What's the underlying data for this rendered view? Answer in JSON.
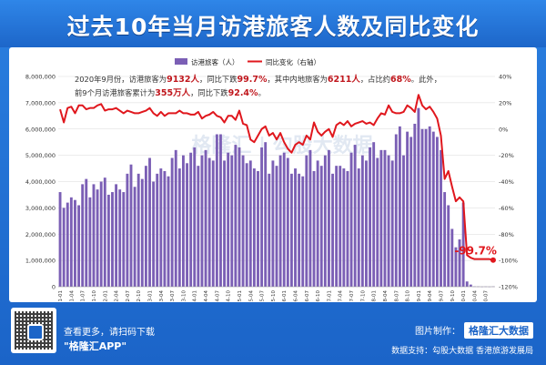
{
  "title": "过去10年当月访港旅客人数及同比变化",
  "colors": {
    "bar": "#7b5fb5",
    "line": "#e0171d",
    "highlight": "#c0171d",
    "background": "#1f6fd0"
  },
  "annotation": {
    "line1": [
      {
        "t": "2020年9月份，访港旅客为",
        "hl": false
      },
      {
        "t": "9132人",
        "hl": true
      },
      {
        "t": "，同比下跌",
        "hl": false
      },
      {
        "t": "99.7%",
        "hl": true
      },
      {
        "t": "，其中内地旅客为",
        "hl": false
      },
      {
        "t": "6211人",
        "hl": true
      },
      {
        "t": "，占比约",
        "hl": false
      },
      {
        "t": "68%",
        "hl": true
      },
      {
        "t": "。此外，",
        "hl": false
      }
    ],
    "line2": [
      {
        "t": "前9个月访港旅客累计为",
        "hl": false
      },
      {
        "t": "355万人",
        "hl": true
      },
      {
        "t": "，同比下跌",
        "hl": false
      },
      {
        "t": "92.4%",
        "hl": true
      },
      {
        "t": "。",
        "hl": false
      }
    ]
  },
  "end_label": "-99.7%",
  "watermark": "格隆汇 | 勾股大数据",
  "footer": {
    "scan_line1": "查看更多，请扫码下载",
    "scan_line2": "\"格隆汇APP\"",
    "made_by": "图片制作：",
    "brand": "格隆汇大数据",
    "source": "数据支持：勾股大数据  香港旅游发展局"
  },
  "chart_data": {
    "type": "bar+line",
    "title": "过去10年当月访港旅客人数及同比变化",
    "legend": [
      "访港旅客（人）",
      "同比变化（右轴）"
    ],
    "legend_position": "top-left",
    "y_left": {
      "min": 0,
      "max": 8000000,
      "step": 1000000,
      "labels": [
        "0",
        "1,000,000",
        "2,000,000",
        "3,000,000",
        "4,000,000",
        "5,000,000",
        "6,000,000",
        "7,000,000",
        "8,000,000"
      ]
    },
    "y_right": {
      "min": -120,
      "max": 40,
      "step": 20,
      "labels": [
        "-120%",
        "-100%",
        "-80%",
        "-60%",
        "-40%",
        "-20%",
        "0%",
        "20%",
        "40%"
      ]
    },
    "x_tick_labels": [
      "2011-01",
      "2011-04",
      "2011-07",
      "2011-10",
      "2012-01",
      "2012-04",
      "2012-07",
      "2012-10",
      "2013-01",
      "2013-04",
      "2013-07",
      "2013-10",
      "2014-01",
      "2014-04",
      "2014-07",
      "2014-10",
      "2015-01",
      "2015-04",
      "2015-07",
      "2015-10",
      "2016-01",
      "2016-04",
      "2016-07",
      "2016-10",
      "2017-01",
      "2017-04",
      "2017-07",
      "2017-10",
      "2018-01",
      "2018-04",
      "2018-07",
      "2018-10",
      "2019-01",
      "2019-04",
      "2019-07",
      "2019-10",
      "2020-01",
      "2020-04",
      "2020-07"
    ],
    "months": [
      "2011-01",
      "2011-02",
      "2011-03",
      "2011-04",
      "2011-05",
      "2011-06",
      "2011-07",
      "2011-08",
      "2011-09",
      "2011-10",
      "2011-11",
      "2011-12",
      "2012-01",
      "2012-02",
      "2012-03",
      "2012-04",
      "2012-05",
      "2012-06",
      "2012-07",
      "2012-08",
      "2012-09",
      "2012-10",
      "2012-11",
      "2012-12",
      "2013-01",
      "2013-02",
      "2013-03",
      "2013-04",
      "2013-05",
      "2013-06",
      "2013-07",
      "2013-08",
      "2013-09",
      "2013-10",
      "2013-11",
      "2013-12",
      "2014-01",
      "2014-02",
      "2014-03",
      "2014-04",
      "2014-05",
      "2014-06",
      "2014-07",
      "2014-08",
      "2014-09",
      "2014-10",
      "2014-11",
      "2014-12",
      "2015-01",
      "2015-02",
      "2015-03",
      "2015-04",
      "2015-05",
      "2015-06",
      "2015-07",
      "2015-08",
      "2015-09",
      "2015-10",
      "2015-11",
      "2015-12",
      "2016-01",
      "2016-02",
      "2016-03",
      "2016-04",
      "2016-05",
      "2016-06",
      "2016-07",
      "2016-08",
      "2016-09",
      "2016-10",
      "2016-11",
      "2016-12",
      "2017-01",
      "2017-02",
      "2017-03",
      "2017-04",
      "2017-05",
      "2017-06",
      "2017-07",
      "2017-08",
      "2017-09",
      "2017-10",
      "2017-11",
      "2017-12",
      "2018-01",
      "2018-02",
      "2018-03",
      "2018-04",
      "2018-05",
      "2018-06",
      "2018-07",
      "2018-08",
      "2018-09",
      "2018-10",
      "2018-11",
      "2018-12",
      "2019-01",
      "2019-02",
      "2019-03",
      "2019-04",
      "2019-05",
      "2019-06",
      "2019-07",
      "2019-08",
      "2019-09",
      "2019-10",
      "2019-11",
      "2019-12",
      "2020-01",
      "2020-02",
      "2020-03",
      "2020-04",
      "2020-05",
      "2020-06",
      "2020-07",
      "2020-08",
      "2020-09"
    ],
    "visitors": [
      3600000,
      3000000,
      3200000,
      3400000,
      3300000,
      3100000,
      3900000,
      4100000,
      3400000,
      3900000,
      3700000,
      4000000,
      4150000,
      3500000,
      3600000,
      3900000,
      3700000,
      3600000,
      4300000,
      4650000,
      3800000,
      4300000,
      4100000,
      4600000,
      4900000,
      4000000,
      4300000,
      4500000,
      4400000,
      4200000,
      4900000,
      5200000,
      4500000,
      5000000,
      4700000,
      5100000,
      5300000,
      4600000,
      5000000,
      5200000,
      4900000,
      4800000,
      5800000,
      5800000,
      4800000,
      5100000,
      5000000,
      5400000,
      5300000,
      5000000,
      4700000,
      4800000,
      4500000,
      4400000,
      5300000,
      5500000,
      4300000,
      4800000,
      4600000,
      5000000,
      5100000,
      4900000,
      4300000,
      4500000,
      4300000,
      4200000,
      5000000,
      5200000,
      4400000,
      4800000,
      4600000,
      5000000,
      5200000,
      4300000,
      4600000,
      4600000,
      4500000,
      4400000,
      5100000,
      5400000,
      4500000,
      5000000,
      4800000,
      5300000,
      5500000,
      4900000,
      5200000,
      5200000,
      5000000,
      4800000,
      5800000,
      6100000,
      5000000,
      5900000,
      5700000,
      6200000,
      6800000,
      6000000,
      6000000,
      6100000,
      5900000,
      5700000,
      5200000,
      3600000,
      3100000,
      2200000,
      1500000,
      1800000,
      3200000,
      200000,
      82000,
      10000,
      8000,
      4000,
      7000,
      4000,
      9132
    ],
    "yoy_pct": [
      15,
      5,
      16,
      17,
      12,
      18,
      18,
      15,
      16,
      16,
      18,
      19,
      14,
      15,
      15,
      16,
      14,
      12,
      14,
      13,
      12,
      12,
      13,
      14,
      16,
      12,
      10,
      13,
      10,
      12,
      12,
      12,
      14,
      12,
      12,
      11,
      11,
      13,
      8,
      10,
      11,
      13,
      10,
      9,
      5,
      10,
      10,
      7,
      14,
      4,
      3,
      -8,
      -10,
      -5,
      0,
      2,
      -5,
      -3,
      -8,
      -3,
      -10,
      -15,
      -18,
      -12,
      -10,
      -12,
      -5,
      -8,
      5,
      -2,
      -5,
      -2,
      0,
      -6,
      3,
      5,
      3,
      6,
      2,
      4,
      5,
      6,
      4,
      5,
      3,
      8,
      12,
      11,
      18,
      13,
      12,
      12,
      13,
      18,
      16,
      13,
      26,
      18,
      15,
      17,
      13,
      8,
      -5,
      -38,
      -32,
      -44,
      -55,
      -52,
      -55,
      -96,
      -98,
      -99,
      -99,
      -99,
      -99,
      -99,
      -99.7
    ]
  }
}
